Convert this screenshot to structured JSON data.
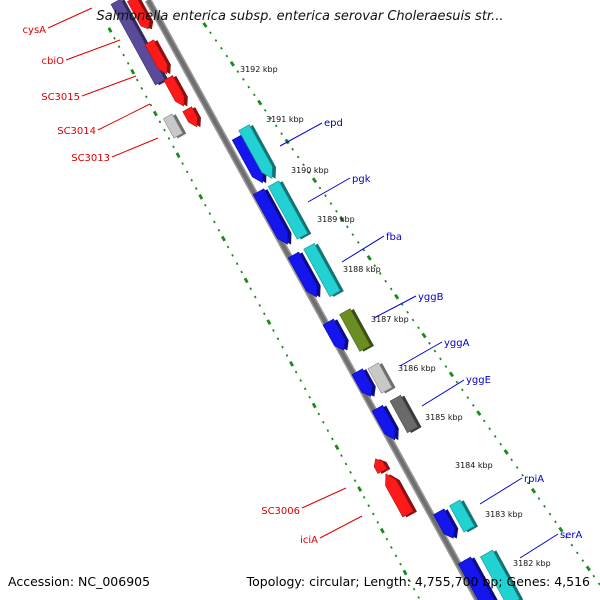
{
  "title": "Salmonella enterica subsp. enterica serovar Choleraesuis str...",
  "footer": {
    "accession": "Accession: NC_006905",
    "summary": "Topology: circular; Length: 4,755,700 bp; Genes: 4,516"
  },
  "colors": {
    "backbone": "#6f6f6f",
    "tick": "#1c8a1c",
    "gene_forward": "#ff1a1a",
    "gene_reverse": "#1515ee",
    "cds_annotation": "#22d1d1",
    "label_left": "#dd0000",
    "label_right": "#0000cc"
  },
  "kbp_markers": [
    "3192 kbp",
    "3191 kbp",
    "3190 kbp",
    "3189 kbp",
    "3188 kbp",
    "3187 kbp",
    "3186 kbp",
    "3185 kbp",
    "3184 kbp",
    "3183 kbp",
    "3182 kbp"
  ],
  "left_labels": [
    "cysA",
    "cbiO",
    "SC3015",
    "SC3014",
    "SC3013",
    "SC3006",
    "iciA"
  ],
  "right_labels": [
    "epd",
    "pgk",
    "fba",
    "yggB",
    "yggA",
    "yggE",
    "rpiA",
    "serA"
  ],
  "features": [
    {
      "name": "cysA-track",
      "color": "#5a4a9a"
    },
    {
      "name": "cysA-gene",
      "color": "#ff1a1a"
    },
    {
      "name": "cbiO-gene",
      "color": "#ff1a1a"
    },
    {
      "name": "SC3015-gene",
      "color": "#ff1a1a"
    },
    {
      "name": "SC3014-gene",
      "color": "#ff1a1a"
    },
    {
      "name": "SC3013-gene",
      "color": "#c8c8c8"
    },
    {
      "name": "epd-gene",
      "color": "#1515ee"
    },
    {
      "name": "epd-cds",
      "color": "#22d1d1"
    },
    {
      "name": "pgk-gene",
      "color": "#1515ee"
    },
    {
      "name": "pgk-cds",
      "color": "#22d1d1"
    },
    {
      "name": "fba-gene",
      "color": "#1515ee"
    },
    {
      "name": "fba-cds",
      "color": "#22d1d1"
    },
    {
      "name": "yggB-gene",
      "color": "#1515ee"
    },
    {
      "name": "yggB-cds",
      "color": "#6b8e23"
    },
    {
      "name": "yggA-gene",
      "color": "#1515ee"
    },
    {
      "name": "yggA-cds",
      "color": "#c8c8c8"
    },
    {
      "name": "yggE-gene",
      "color": "#1515ee"
    },
    {
      "name": "yggE-cds",
      "color": "#6a6a6a"
    },
    {
      "name": "SC3006-gene",
      "color": "#ff1a1a"
    },
    {
      "name": "iciA-gene",
      "color": "#ff1a1a"
    },
    {
      "name": "rpiA-gene",
      "color": "#1515ee"
    },
    {
      "name": "rpiA-cds",
      "color": "#22d1d1"
    },
    {
      "name": "serA-gene",
      "color": "#1515ee"
    },
    {
      "name": "serA-cds",
      "color": "#22d1d1"
    }
  ]
}
